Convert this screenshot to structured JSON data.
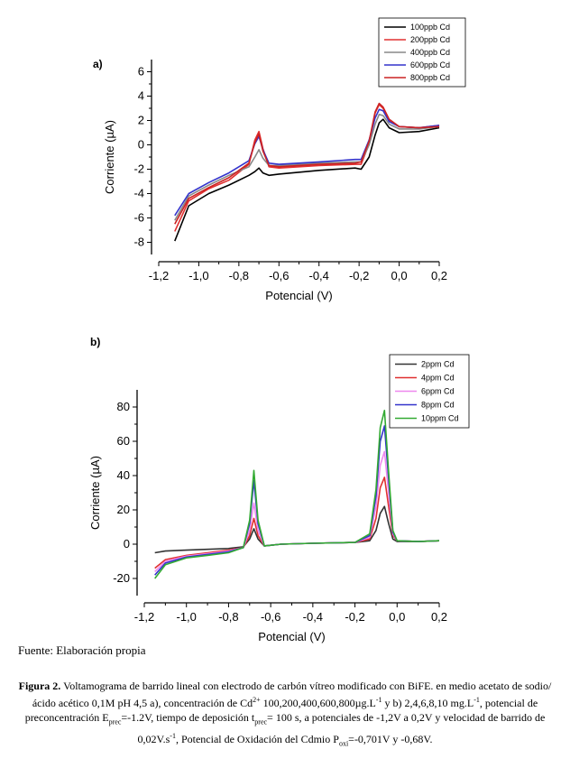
{
  "chart_data": [
    {
      "panel_label": "a)",
      "type": "line",
      "xlabel": "Potencial (V)",
      "ylabel": "Corriente (µA)",
      "xlim": [
        -1.2,
        0.2
      ],
      "ylim": [
        -9,
        7
      ],
      "xticks": [
        -1.2,
        -1.0,
        -0.8,
        -0.6,
        -0.4,
        -0.2,
        0.0,
        0.2
      ],
      "xtick_labels": [
        "-1,2",
        "-1,0",
        "-0,8",
        "-0,6",
        "-0,4",
        "-0,2",
        "0,0",
        "0,2"
      ],
      "yticks": [
        -8,
        -6,
        -4,
        -2,
        0,
        2,
        4,
        6
      ],
      "ytick_labels": [
        "-8",
        "-6",
        "-4",
        "-2",
        "0",
        "2",
        "4",
        "6"
      ],
      "legend_position": "top-right",
      "series": [
        {
          "name": "100ppb Cd",
          "color": "#000000",
          "x": [
            -1.12,
            -1.05,
            -0.95,
            -0.85,
            -0.75,
            -0.72,
            -0.7,
            -0.68,
            -0.65,
            -0.6,
            -0.4,
            -0.22,
            -0.19,
            -0.15,
            -0.12,
            -0.1,
            -0.08,
            -0.05,
            0.0,
            0.1,
            0.2
          ],
          "y": [
            -7.9,
            -5.0,
            -4.0,
            -3.3,
            -2.5,
            -2.2,
            -1.9,
            -2.3,
            -2.5,
            -2.4,
            -2.1,
            -1.9,
            -2.0,
            -1.0,
            0.8,
            1.8,
            2.1,
            1.4,
            1.0,
            1.1,
            1.4
          ]
        },
        {
          "name": "200ppb Cd",
          "color": "#e03030",
          "x": [
            -1.12,
            -1.05,
            -0.95,
            -0.85,
            -0.75,
            -0.72,
            -0.7,
            -0.68,
            -0.65,
            -0.6,
            -0.4,
            -0.22,
            -0.19,
            -0.15,
            -0.12,
            -0.1,
            -0.08,
            -0.05,
            0.0,
            0.1,
            0.2
          ],
          "y": [
            -7.1,
            -4.6,
            -3.6,
            -2.9,
            -1.6,
            0.4,
            1.1,
            -0.3,
            -1.8,
            -1.9,
            -1.7,
            -1.6,
            -1.6,
            0.1,
            2.6,
            3.3,
            3.0,
            2.0,
            1.5,
            1.4,
            1.6
          ]
        },
        {
          "name": "400ppb Cd",
          "color": "#888888",
          "x": [
            -1.12,
            -1.05,
            -0.95,
            -0.85,
            -0.75,
            -0.72,
            -0.7,
            -0.68,
            -0.65,
            -0.6,
            -0.4,
            -0.22,
            -0.19,
            -0.15,
            -0.12,
            -0.1,
            -0.08,
            -0.05,
            0.0,
            0.1,
            0.2
          ],
          "y": [
            -6.2,
            -4.2,
            -3.3,
            -2.5,
            -1.8,
            -1.0,
            -0.4,
            -1.1,
            -1.7,
            -1.7,
            -1.5,
            -1.4,
            -1.4,
            0.0,
            1.7,
            2.5,
            2.4,
            1.7,
            1.3,
            1.3,
            1.5
          ]
        },
        {
          "name": "600ppb Cd",
          "color": "#3333cc",
          "x": [
            -1.12,
            -1.05,
            -0.95,
            -0.85,
            -0.75,
            -0.72,
            -0.7,
            -0.68,
            -0.65,
            -0.6,
            -0.4,
            -0.22,
            -0.19,
            -0.15,
            -0.12,
            -0.1,
            -0.08,
            -0.05,
            0.0,
            0.1,
            0.2
          ],
          "y": [
            -5.8,
            -4.0,
            -3.1,
            -2.3,
            -1.3,
            0.1,
            0.7,
            -0.4,
            -1.5,
            -1.6,
            -1.4,
            -1.2,
            -1.2,
            0.4,
            2.2,
            2.9,
            2.8,
            1.9,
            1.5,
            1.4,
            1.6
          ]
        },
        {
          "name": "800ppb Cd",
          "color": "#cc2222",
          "x": [
            -1.12,
            -1.05,
            -0.95,
            -0.85,
            -0.75,
            -0.72,
            -0.7,
            -0.68,
            -0.65,
            -0.6,
            -0.4,
            -0.22,
            -0.19,
            -0.15,
            -0.12,
            -0.1,
            -0.08,
            -0.05,
            0.0,
            0.1,
            0.2
          ],
          "y": [
            -6.5,
            -4.4,
            -3.5,
            -2.7,
            -1.5,
            0.2,
            0.9,
            -0.5,
            -1.7,
            -1.8,
            -1.6,
            -1.5,
            -1.4,
            0.3,
            2.7,
            3.4,
            3.1,
            2.1,
            1.5,
            1.4,
            1.5
          ]
        }
      ]
    },
    {
      "panel_label": "b)",
      "type": "line",
      "xlabel": "Potencial (V)",
      "ylabel": "Corriente (µA)",
      "xlim": [
        -1.2,
        0.2
      ],
      "ylim": [
        -30,
        90
      ],
      "xticks": [
        -1.2,
        -1.0,
        -0.8,
        -0.6,
        -0.4,
        -0.2,
        0.0,
        0.2
      ],
      "xtick_labels": [
        "-1,2",
        "-1,0",
        "-0,8",
        "-0,6",
        "-0,4",
        "-0,2",
        "0,0",
        "0,2"
      ],
      "yticks": [
        -20,
        0,
        20,
        40,
        60,
        80
      ],
      "ytick_labels": [
        "-20",
        "0",
        "20",
        "40",
        "60",
        "80"
      ],
      "legend_position": "top-right",
      "series": [
        {
          "name": "2ppm Cd",
          "color": "#333333",
          "x": [
            -1.15,
            -1.1,
            -1.0,
            -0.9,
            -0.8,
            -0.73,
            -0.7,
            -0.68,
            -0.66,
            -0.63,
            -0.55,
            -0.4,
            -0.2,
            -0.13,
            -0.1,
            -0.08,
            -0.06,
            -0.04,
            -0.02,
            0.0,
            0.1,
            0.2
          ],
          "y": [
            -5,
            -4,
            -3.5,
            -3,
            -2.5,
            -1.5,
            3,
            9,
            3,
            -1,
            0,
            0.5,
            1,
            2,
            8,
            18,
            22,
            12,
            3,
            1.5,
            1.5,
            2
          ]
        },
        {
          "name": "4ppm Cd",
          "color": "#e03030",
          "x": [
            -1.15,
            -1.1,
            -1.0,
            -0.9,
            -0.8,
            -0.73,
            -0.7,
            -0.68,
            -0.66,
            -0.63,
            -0.55,
            -0.4,
            -0.2,
            -0.13,
            -0.1,
            -0.08,
            -0.06,
            -0.04,
            -0.02,
            0.0,
            0.1,
            0.2
          ],
          "y": [
            -14,
            -9,
            -6.5,
            -5,
            -3.5,
            -2,
            5,
            15,
            5,
            -1,
            0,
            0.5,
            1,
            3,
            15,
            33,
            39,
            22,
            5,
            2,
            1.5,
            2
          ]
        },
        {
          "name": "6ppm Cd",
          "color": "#ee88ee",
          "x": [
            -1.15,
            -1.1,
            -1.0,
            -0.9,
            -0.8,
            -0.73,
            -0.7,
            -0.68,
            -0.66,
            -0.63,
            -0.55,
            -0.4,
            -0.2,
            -0.13,
            -0.1,
            -0.08,
            -0.06,
            -0.04,
            -0.02,
            0.0,
            0.1,
            0.2
          ],
          "y": [
            -16,
            -10,
            -7,
            -5.5,
            -4,
            -2,
            8,
            24,
            8,
            -1,
            0,
            0.5,
            1,
            4,
            22,
            46,
            54,
            30,
            6,
            2,
            1.5,
            2
          ]
        },
        {
          "name": "8ppm Cd",
          "color": "#3333cc",
          "x": [
            -1.15,
            -1.1,
            -1.0,
            -0.9,
            -0.8,
            -0.73,
            -0.7,
            -0.68,
            -0.66,
            -0.63,
            -0.55,
            -0.4,
            -0.2,
            -0.13,
            -0.1,
            -0.08,
            -0.06,
            -0.04,
            -0.02,
            0.0,
            0.1,
            0.2
          ],
          "y": [
            -18,
            -11,
            -7.5,
            -6,
            -4.5,
            -2,
            12,
            37,
            12,
            -1,
            0,
            0.5,
            1,
            5,
            28,
            60,
            69,
            38,
            7,
            2,
            1.5,
            2
          ]
        },
        {
          "name": "10ppm Cd",
          "color": "#33aa33",
          "x": [
            -1.15,
            -1.1,
            -1.0,
            -0.9,
            -0.8,
            -0.73,
            -0.7,
            -0.68,
            -0.66,
            -0.63,
            -0.55,
            -0.4,
            -0.2,
            -0.13,
            -0.1,
            -0.08,
            -0.06,
            -0.04,
            -0.02,
            0.0,
            0.1,
            0.2
          ],
          "y": [
            -20,
            -12,
            -8,
            -6.5,
            -5,
            -2,
            14,
            43,
            14,
            -1,
            0,
            0.5,
            1,
            6,
            32,
            68,
            78,
            42,
            8,
            2,
            1.5,
            2
          ]
        }
      ]
    }
  ],
  "source_text": "Fuente: Elaboración propia",
  "caption": {
    "figure_label": "Figura 2.",
    "text_1": " Voltamograma de barrido lineal con electrodo de  carbón vítreo modificado con BiFE. en medio acetato de sodio/ácido acético 0,1M pH 4,5 a), concentración de Cd",
    "sup_1": "2+",
    "text_2": " 100,200,400,600,800µg.L",
    "sup_2": "-1",
    "text_3": " y b) 2,4,6,8,10 mg.L",
    "sup_3": "-1",
    "text_4": ", potencial de preconcentración E",
    "sub_1": "prec",
    "text_5": "=-1.2V, tiempo de deposición t",
    "sub_2": "prec",
    "text_6": "= 100 s, a potenciales de -1,2V a 0,2V y velocidad de barrido de 0,02V.s",
    "sup_4": "-1",
    "text_7": ", Potencial de Oxidación del Cdmio P",
    "sub_3": "oxi",
    "text_8": "=-0,701V y -0,68V."
  }
}
